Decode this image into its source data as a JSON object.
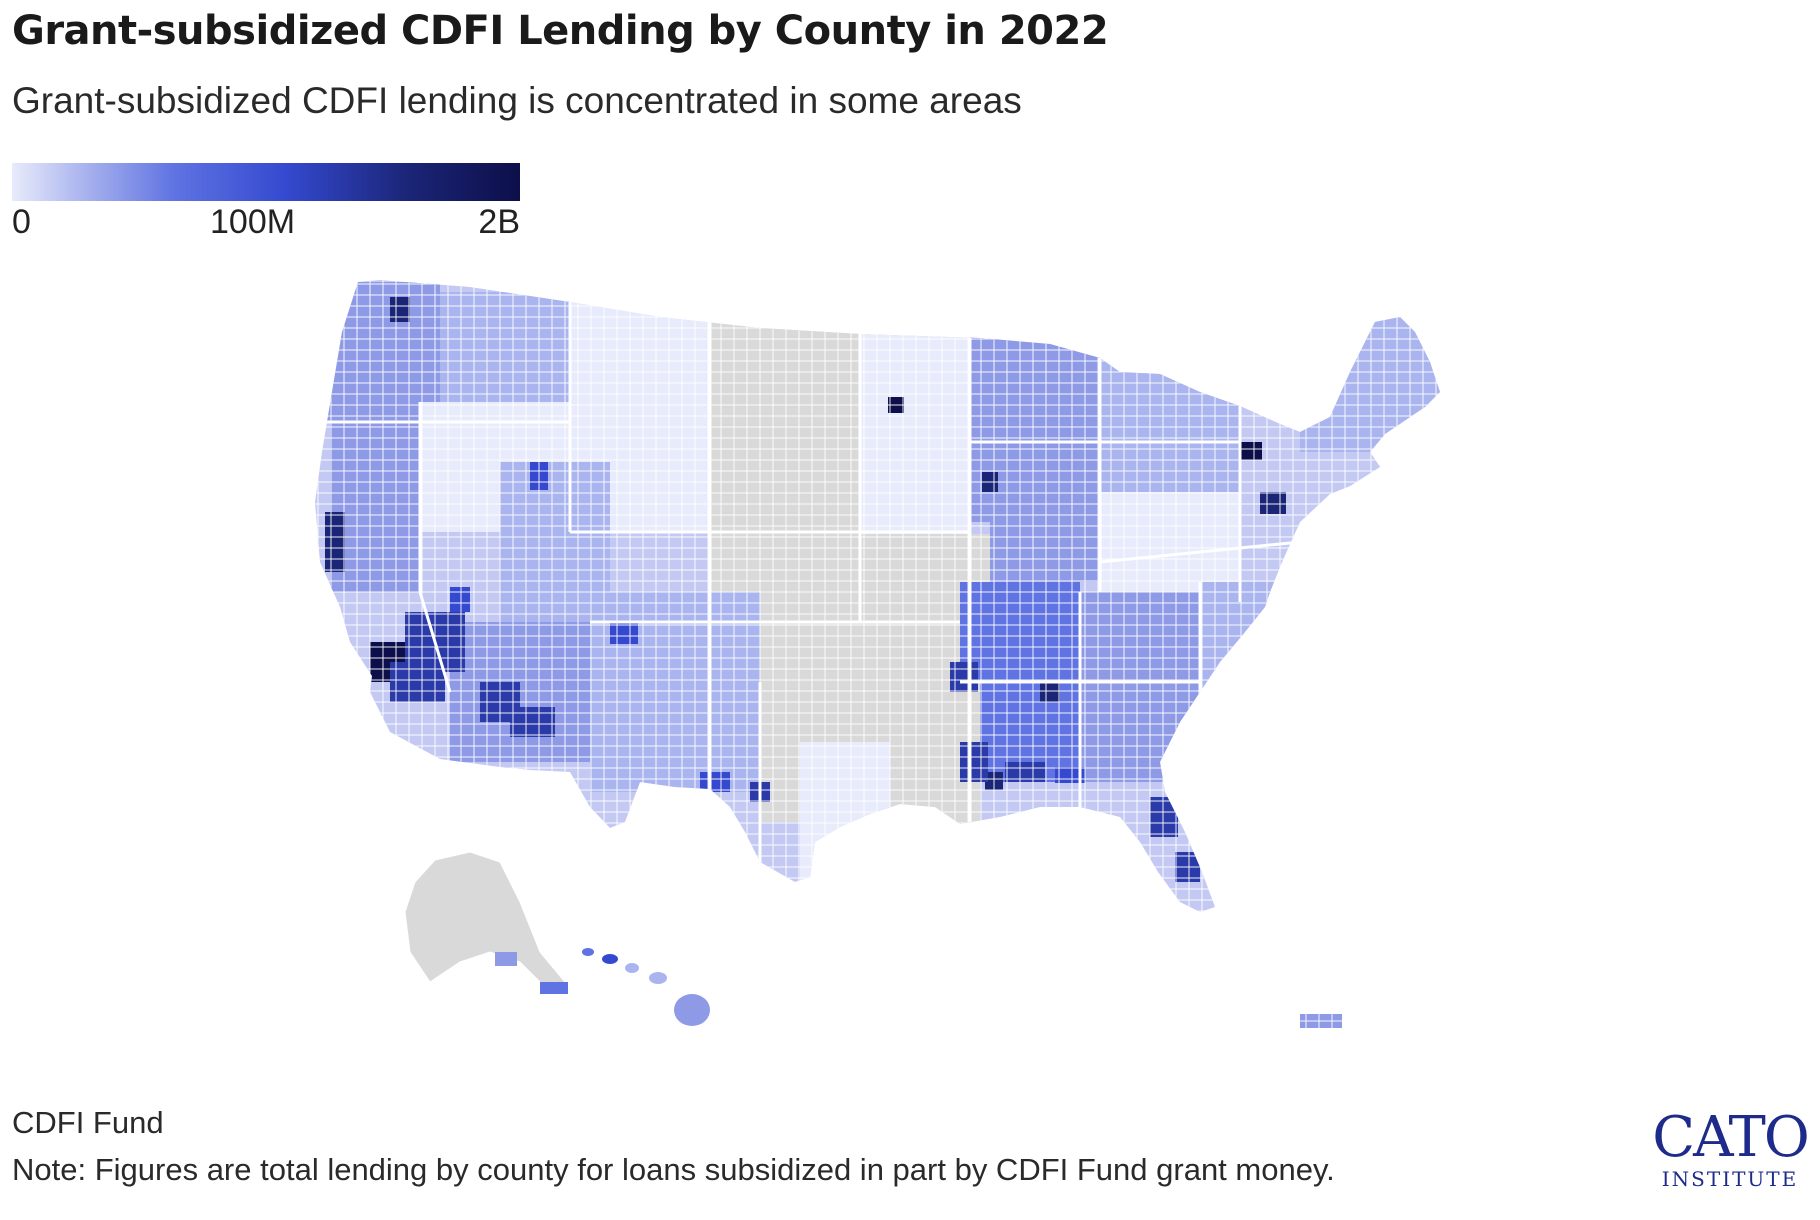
{
  "title": "Grant-subsidized CDFI Lending by County in 2022",
  "subtitle": "Grant-subsidized CDFI lending is concentrated in some areas",
  "legend": {
    "ticks": [
      "0",
      "100M",
      "2B"
    ],
    "colors": [
      "#e8ebfb",
      "#aab4ee",
      "#5f73e2",
      "#3449cf",
      "#1b2577",
      "#0d0f4a"
    ]
  },
  "map_colors": {
    "no_data": "#d9d9d9",
    "lightest": "#e8ebfb",
    "light": "#c3c9f3",
    "medium_light": "#8e9ae6",
    "medium": "#5f73e2",
    "dark": "#2a3aa8",
    "darkest": "#0d0f4a",
    "border": "#ffffff"
  },
  "source": "CDFI Fund",
  "note": "Note: Figures are total lending by county for loans subsidized in part by CDFI Fund grant money.",
  "logo": {
    "main": "CATO",
    "sub": "INSTITUTE"
  }
}
